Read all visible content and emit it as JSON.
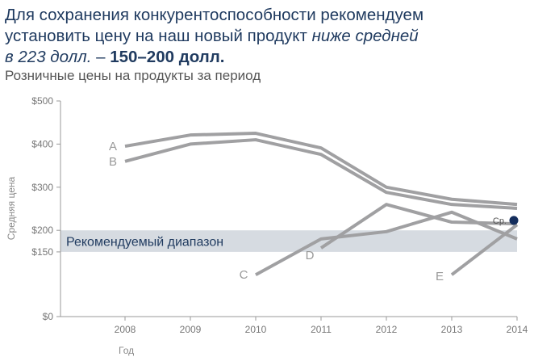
{
  "headline": {
    "line1": "Для сохранения конкурентоспособности рекомендуем",
    "line2_regular": "установить цену на наш новый продукт ",
    "line2_italic": "ниже средней",
    "line3_italic": "в 223 долл.",
    "line3_dash": " – ",
    "line3_bold": "150–200 долл."
  },
  "chart_data": {
    "type": "line",
    "title": "Розничные цены на продукты за период",
    "xlabel": "Год",
    "ylabel": "Средняя цена",
    "x": [
      2008,
      2009,
      2010,
      2011,
      2012,
      2013,
      2014
    ],
    "ylim": [
      0,
      500
    ],
    "yticks": [
      {
        "v": 0,
        "label": "$0"
      },
      {
        "v": 150,
        "label": "$150"
      },
      {
        "v": 200,
        "label": "$200"
      },
      {
        "v": 300,
        "label": "$300"
      },
      {
        "v": 400,
        "label": "$400"
      },
      {
        "v": 500,
        "label": "$500"
      }
    ],
    "series": [
      {
        "name": "A",
        "values": [
          395,
          421,
          425,
          391,
          300,
          272,
          260
        ]
      },
      {
        "name": "B",
        "values": [
          360,
          400,
          410,
          376,
          288,
          260,
          251
        ]
      },
      {
        "name": "C",
        "values": [
          null,
          null,
          97,
          180,
          197,
          242,
          180
        ]
      },
      {
        "name": "D",
        "values": [
          null,
          null,
          null,
          159,
          260,
          219,
          215
        ]
      },
      {
        "name": "E",
        "values": [
          null,
          null,
          null,
          null,
          null,
          97,
          213
        ]
      }
    ],
    "band": {
      "label": "Рекомендуемый диапазон",
      "from": 150,
      "to": 200
    },
    "average": {
      "label": "Ср.",
      "value": 223,
      "x": 2014
    },
    "colors": {
      "line": "#a0a0a2",
      "band": "#d6dbe1",
      "avg": "#142d5c",
      "title": "#1f3a5f"
    }
  }
}
